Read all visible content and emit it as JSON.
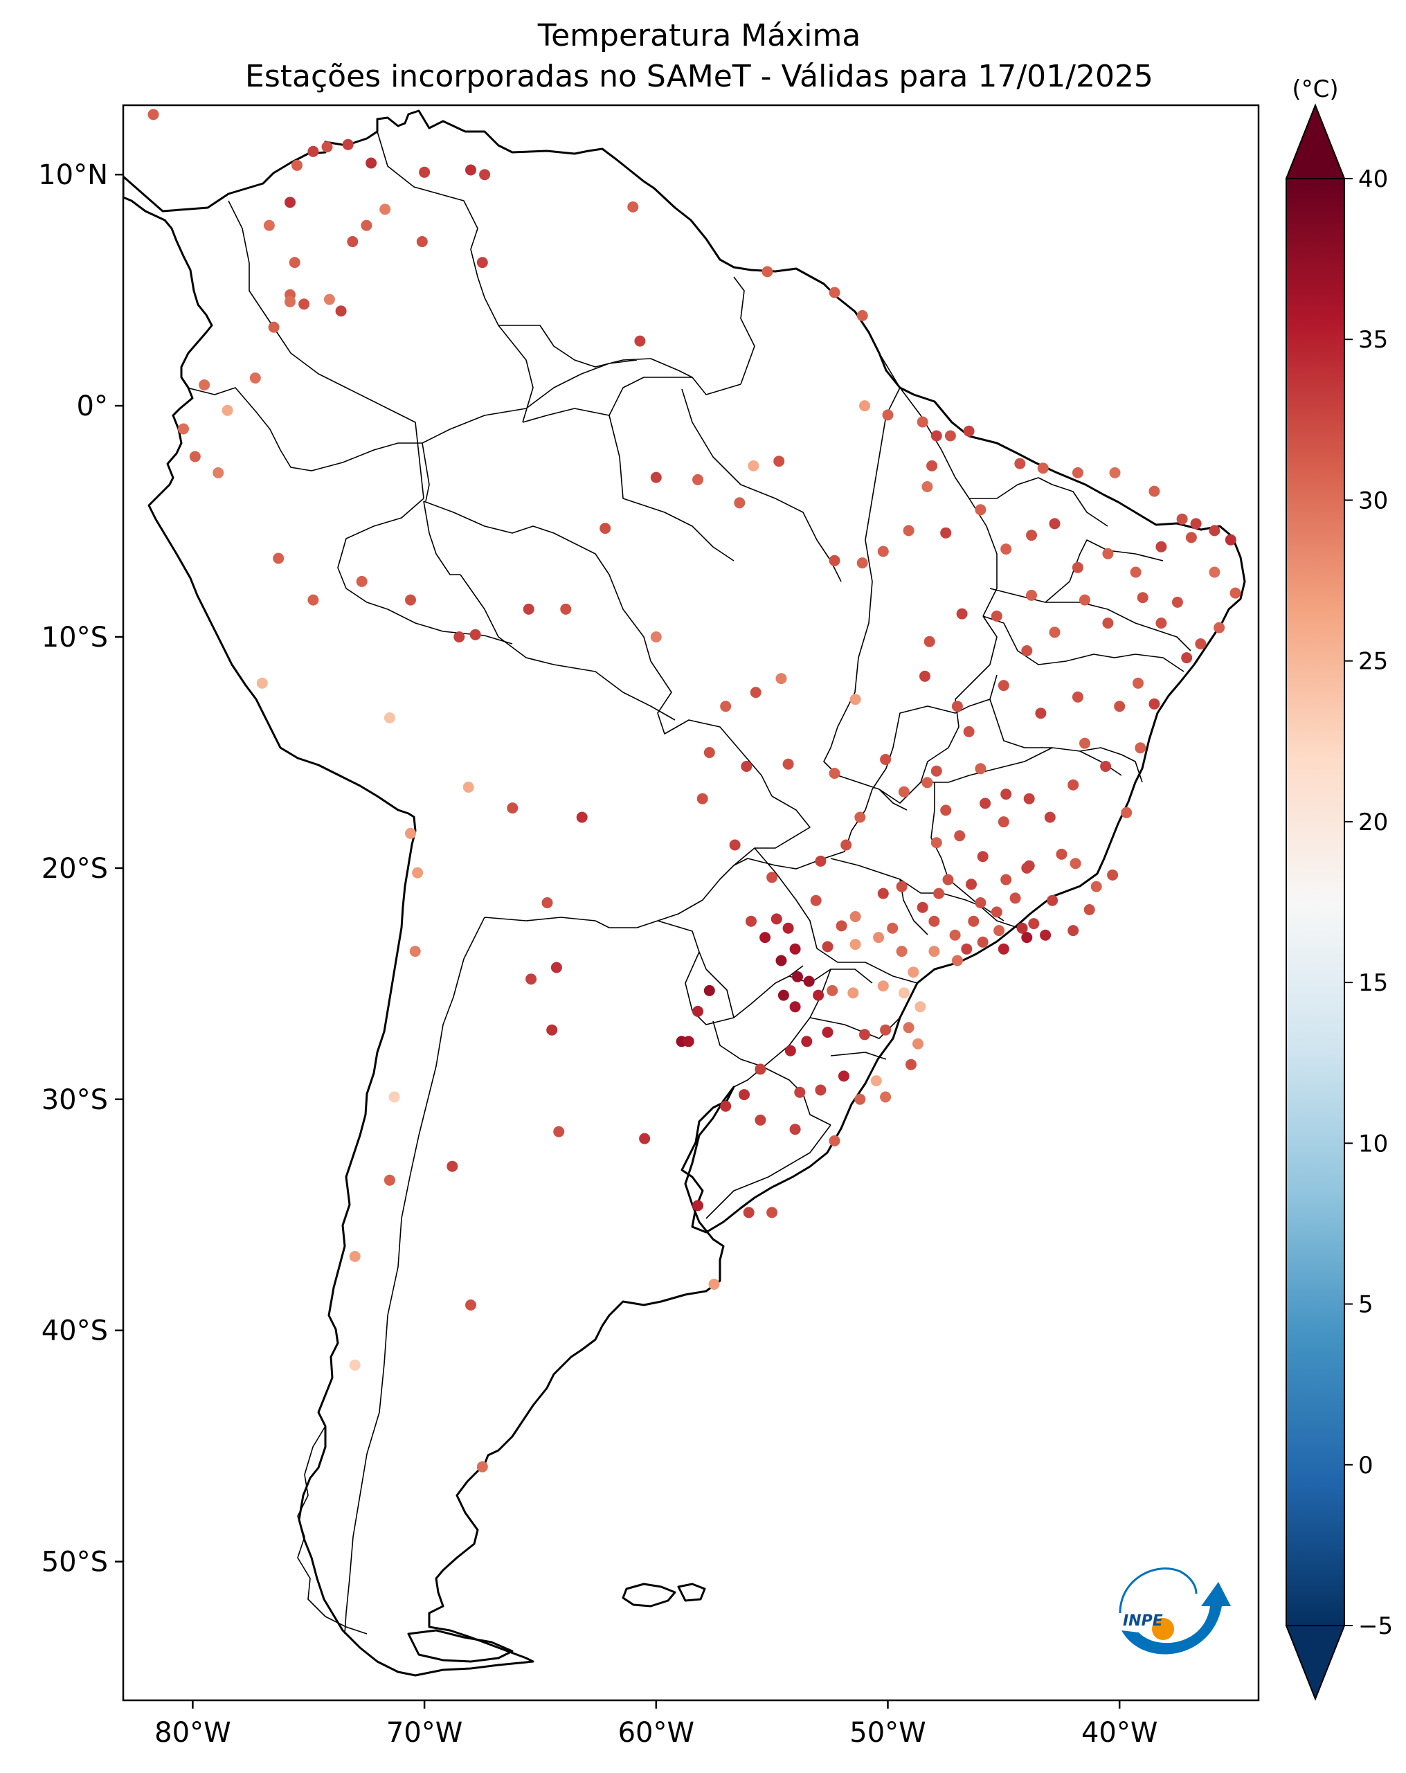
{
  "title": {
    "line1": "Temperatura Máxima",
    "line2": "Estações incorporadas no SAMeT - Válidas para 17/01/2025"
  },
  "map": {
    "projection": "plate-carree",
    "lon_range": [
      -83,
      -34
    ],
    "lat_range": [
      -56,
      13
    ],
    "lat_ticks": [
      {
        "value": 10,
        "label": "10°N"
      },
      {
        "value": 0,
        "label": "0°"
      },
      {
        "value": -10,
        "label": "10°S"
      },
      {
        "value": -20,
        "label": "20°S"
      },
      {
        "value": -30,
        "label": "30°S"
      },
      {
        "value": -40,
        "label": "40°S"
      },
      {
        "value": -50,
        "label": "50°S"
      }
    ],
    "lon_ticks": [
      {
        "value": -80,
        "label": "80°W"
      },
      {
        "value": -70,
        "label": "70°W"
      },
      {
        "value": -60,
        "label": "60°W"
      },
      {
        "value": -50,
        "label": "50°W"
      },
      {
        "value": -40,
        "label": "40°W"
      }
    ]
  },
  "colorbar": {
    "unit": "(°C)",
    "vmin": -5,
    "vmax": 40,
    "extend": "both",
    "colormap": "RdBu_r",
    "ticks": [
      {
        "value": 40,
        "label": "40"
      },
      {
        "value": 35,
        "label": "35"
      },
      {
        "value": 30,
        "label": "30"
      },
      {
        "value": 25,
        "label": "25"
      },
      {
        "value": 20,
        "label": "20"
      },
      {
        "value": 15,
        "label": "15"
      },
      {
        "value": 10,
        "label": "10"
      },
      {
        "value": 5,
        "label": "5"
      },
      {
        "value": 0,
        "label": "0"
      },
      {
        "value": -5,
        "label": "−5"
      }
    ],
    "stops": [
      "#053061",
      "#2166ac",
      "#4393c3",
      "#92c5de",
      "#d1e5f0",
      "#f7f7f7",
      "#fddbc7",
      "#f4a582",
      "#d6604d",
      "#b2182b",
      "#67001f"
    ]
  },
  "logo": {
    "text": "INPE",
    "blue": "#0072bc",
    "orange": "#f39200"
  },
  "chart_data": {
    "type": "scatter",
    "x_name": "longitude",
    "y_name": "latitude",
    "value_name": "max_temperature_c",
    "stations": [
      [
        -81.7,
        12.6,
        31
      ],
      [
        -74.8,
        11.0,
        33
      ],
      [
        -74.2,
        11.2,
        32
      ],
      [
        -73.3,
        11.3,
        33
      ],
      [
        -72.3,
        10.5,
        34
      ],
      [
        -70.0,
        10.1,
        33
      ],
      [
        -68.0,
        10.2,
        34
      ],
      [
        -67.4,
        10.0,
        33
      ],
      [
        -75.5,
        10.4,
        31
      ],
      [
        -75.8,
        8.8,
        34
      ],
      [
        -76.7,
        7.8,
        30
      ],
      [
        -73.1,
        7.1,
        32
      ],
      [
        -72.5,
        7.8,
        31
      ],
      [
        -71.7,
        8.5,
        29
      ],
      [
        -70.1,
        7.1,
        32
      ],
      [
        -67.5,
        6.2,
        33
      ],
      [
        -75.6,
        6.2,
        31
      ],
      [
        -75.8,
        4.8,
        31
      ],
      [
        -75.2,
        4.4,
        32
      ],
      [
        -74.1,
        4.6,
        29
      ],
      [
        -73.6,
        4.1,
        33
      ],
      [
        -75.8,
        4.5,
        30
      ],
      [
        -76.5,
        3.4,
        31
      ],
      [
        -77.3,
        1.2,
        30
      ],
      [
        -78.5,
        -0.2,
        26
      ],
      [
        -79.9,
        -2.2,
        31
      ],
      [
        -80.4,
        -1.0,
        30
      ],
      [
        -78.9,
        -2.9,
        29
      ],
      [
        -79.5,
        0.9,
        30
      ],
      [
        -60.7,
        2.8,
        33
      ],
      [
        -61.0,
        8.6,
        31
      ],
      [
        -52.3,
        4.9,
        31
      ],
      [
        -55.2,
        5.8,
        31
      ],
      [
        -51.1,
        3.9,
        31
      ],
      [
        -51.0,
        0.0,
        27
      ],
      [
        -50.0,
        -0.4,
        31
      ],
      [
        -48.5,
        -0.7,
        31
      ],
      [
        -47.9,
        -1.3,
        33
      ],
      [
        -47.3,
        -1.3,
        32
      ],
      [
        -46.5,
        -1.1,
        33
      ],
      [
        -48.1,
        -2.6,
        32
      ],
      [
        -48.3,
        -3.5,
        30
      ],
      [
        -44.3,
        -2.5,
        32
      ],
      [
        -43.3,
        -2.7,
        31
      ],
      [
        -41.8,
        -2.9,
        31
      ],
      [
        -40.2,
        -2.9,
        30
      ],
      [
        -38.5,
        -3.7,
        31
      ],
      [
        -37.3,
        -4.9,
        32
      ],
      [
        -36.7,
        -5.1,
        33
      ],
      [
        -35.2,
        -5.8,
        34
      ],
      [
        -35.9,
        -5.4,
        33
      ],
      [
        -36.9,
        -5.7,
        32
      ],
      [
        -38.2,
        -6.1,
        33
      ],
      [
        -39.3,
        -7.2,
        31
      ],
      [
        -40.5,
        -6.4,
        31
      ],
      [
        -41.8,
        -7.0,
        32
      ],
      [
        -42.8,
        -5.1,
        33
      ],
      [
        -43.8,
        -5.6,
        32
      ],
      [
        -44.9,
        -6.2,
        31
      ],
      [
        -46.0,
        -4.5,
        31
      ],
      [
        -47.5,
        -5.5,
        33
      ],
      [
        -49.1,
        -5.4,
        31
      ],
      [
        -50.2,
        -6.3,
        31
      ],
      [
        -51.1,
        -6.8,
        31
      ],
      [
        -52.3,
        -6.7,
        32
      ],
      [
        -54.7,
        -2.4,
        32
      ],
      [
        -55.8,
        -2.6,
        26
      ],
      [
        -56.4,
        -4.2,
        31
      ],
      [
        -58.2,
        -3.2,
        31
      ],
      [
        -60.0,
        -3.1,
        33
      ],
      [
        -62.2,
        -5.3,
        32
      ],
      [
        -63.9,
        -8.8,
        32
      ],
      [
        -65.5,
        -8.8,
        33
      ],
      [
        -67.8,
        -9.9,
        33
      ],
      [
        -68.5,
        -10.0,
        33
      ],
      [
        -70.6,
        -8.4,
        32
      ],
      [
        -72.7,
        -7.6,
        31
      ],
      [
        -74.8,
        -8.4,
        31
      ],
      [
        -76.3,
        -6.6,
        31
      ],
      [
        -77.0,
        -12.0,
        25
      ],
      [
        -71.5,
        -13.5,
        24
      ],
      [
        -68.1,
        -16.5,
        26
      ],
      [
        -66.2,
        -17.4,
        32
      ],
      [
        -63.2,
        -17.8,
        34
      ],
      [
        -64.7,
        -21.5,
        32
      ],
      [
        -65.4,
        -24.8,
        33
      ],
      [
        -64.3,
        -24.3,
        34
      ],
      [
        -64.5,
        -27.0,
        34
      ],
      [
        -58.9,
        -27.5,
        37
      ],
      [
        -57.7,
        -25.3,
        37
      ],
      [
        -58.6,
        -27.5,
        36
      ],
      [
        -58.2,
        -26.2,
        35
      ],
      [
        -60.5,
        -31.7,
        34
      ],
      [
        -64.2,
        -31.4,
        32
      ],
      [
        -68.8,
        -32.9,
        33
      ],
      [
        -71.5,
        -33.5,
        31
      ],
      [
        -70.6,
        -18.5,
        27
      ],
      [
        -70.3,
        -20.2,
        27
      ],
      [
        -70.4,
        -23.6,
        29
      ],
      [
        -71.3,
        -29.9,
        23
      ],
      [
        -73.0,
        -36.8,
        27
      ],
      [
        -73.0,
        -41.5,
        23
      ],
      [
        -67.5,
        -45.9,
        30
      ],
      [
        -68.0,
        -38.9,
        32
      ],
      [
        -58.2,
        -34.6,
        35
      ],
      [
        -57.5,
        -38.0,
        27
      ],
      [
        -56.0,
        -34.9,
        33
      ],
      [
        -55.0,
        -34.9,
        32
      ],
      [
        -60.0,
        -10.0,
        29
      ],
      [
        -57.0,
        -13.0,
        31
      ],
      [
        -55.7,
        -12.4,
        32
      ],
      [
        -54.6,
        -11.8,
        29
      ],
      [
        -51.4,
        -12.7,
        27
      ],
      [
        -52.3,
        -15.9,
        31
      ],
      [
        -54.3,
        -15.5,
        32
      ],
      [
        -56.1,
        -15.6,
        33
      ],
      [
        -57.7,
        -15.0,
        32
      ],
      [
        -58.0,
        -17.0,
        32
      ],
      [
        -56.6,
        -19.0,
        33
      ],
      [
        -55.0,
        -20.4,
        32
      ],
      [
        -55.9,
        -22.3,
        33
      ],
      [
        -54.8,
        -22.2,
        34
      ],
      [
        -54.3,
        -22.6,
        35
      ],
      [
        -55.3,
        -23.0,
        36
      ],
      [
        -54.0,
        -23.5,
        36
      ],
      [
        -54.6,
        -24.0,
        37
      ],
      [
        -54.5,
        -25.5,
        37
      ],
      [
        -53.9,
        -24.7,
        37
      ],
      [
        -53.4,
        -24.9,
        37
      ],
      [
        -54.0,
        -26.0,
        36
      ],
      [
        -53.0,
        -25.5,
        35
      ],
      [
        -52.4,
        -25.3,
        31
      ],
      [
        -51.5,
        -25.4,
        27
      ],
      [
        -50.2,
        -25.1,
        27
      ],
      [
        -49.3,
        -25.4,
        24
      ],
      [
        -48.6,
        -26.0,
        25
      ],
      [
        -49.1,
        -26.9,
        30
      ],
      [
        -50.1,
        -27.0,
        32
      ],
      [
        -51.0,
        -27.2,
        33
      ],
      [
        -52.6,
        -27.1,
        35
      ],
      [
        -53.5,
        -27.5,
        35
      ],
      [
        -54.2,
        -27.9,
        35
      ],
      [
        -55.5,
        -28.7,
        33
      ],
      [
        -56.2,
        -29.8,
        34
      ],
      [
        -57.0,
        -30.3,
        34
      ],
      [
        -55.5,
        -30.9,
        33
      ],
      [
        -54.0,
        -31.3,
        33
      ],
      [
        -52.3,
        -31.8,
        31
      ],
      [
        -51.2,
        -30.0,
        31
      ],
      [
        -50.1,
        -29.9,
        30
      ],
      [
        -50.5,
        -29.2,
        26
      ],
      [
        -51.9,
        -29.0,
        35
      ],
      [
        -52.9,
        -29.6,
        33
      ],
      [
        -53.8,
        -29.7,
        33
      ],
      [
        -49.0,
        -28.5,
        32
      ],
      [
        -48.7,
        -27.6,
        28
      ],
      [
        -50.2,
        -21.1,
        33
      ],
      [
        -49.4,
        -20.8,
        32
      ],
      [
        -48.5,
        -21.7,
        33
      ],
      [
        -47.8,
        -21.1,
        32
      ],
      [
        -46.6,
        -23.5,
        33
      ],
      [
        -45.9,
        -23.2,
        32
      ],
      [
        -45.2,
        -22.7,
        31
      ],
      [
        -44.2,
        -22.6,
        34
      ],
      [
        -43.2,
        -22.9,
        35
      ],
      [
        -42.0,
        -22.7,
        33
      ],
      [
        -41.3,
        -21.8,
        32
      ],
      [
        -40.3,
        -20.3,
        32
      ],
      [
        -41.9,
        -19.8,
        31
      ],
      [
        -43.9,
        -19.9,
        33
      ],
      [
        -44.9,
        -20.5,
        32
      ],
      [
        -45.9,
        -19.5,
        33
      ],
      [
        -46.9,
        -18.6,
        32
      ],
      [
        -47.9,
        -18.9,
        31
      ],
      [
        -48.3,
        -16.3,
        31
      ],
      [
        -49.3,
        -16.7,
        31
      ],
      [
        -47.9,
        -15.8,
        32
      ],
      [
        -50.1,
        -15.3,
        32
      ],
      [
        -51.2,
        -17.8,
        31
      ],
      [
        -51.8,
        -19.0,
        32
      ],
      [
        -52.9,
        -19.7,
        33
      ],
      [
        -53.1,
        -21.4,
        32
      ],
      [
        -51.4,
        -22.1,
        29
      ],
      [
        -52.0,
        -22.5,
        32
      ],
      [
        -52.6,
        -23.4,
        33
      ],
      [
        -51.4,
        -23.3,
        27
      ],
      [
        -50.4,
        -23.0,
        28
      ],
      [
        -49.4,
        -23.6,
        30
      ],
      [
        -48.0,
        -23.6,
        28
      ],
      [
        -48.9,
        -24.5,
        27
      ],
      [
        -47.0,
        -24.0,
        30
      ],
      [
        -45.0,
        -23.5,
        35
      ],
      [
        -44.0,
        -23.0,
        36
      ],
      [
        -43.7,
        -22.4,
        33
      ],
      [
        -44.5,
        -21.3,
        32
      ],
      [
        -45.3,
        -21.9,
        32
      ],
      [
        -46.3,
        -22.3,
        32
      ],
      [
        -47.1,
        -22.9,
        31
      ],
      [
        -48.0,
        -22.3,
        32
      ],
      [
        -49.8,
        -22.6,
        31
      ],
      [
        -46.4,
        -20.7,
        33
      ],
      [
        -45.0,
        -18.0,
        32
      ],
      [
        -43.0,
        -17.8,
        33
      ],
      [
        -42.0,
        -16.4,
        32
      ],
      [
        -40.6,
        -15.6,
        33
      ],
      [
        -41.5,
        -14.6,
        31
      ],
      [
        -39.1,
        -14.8,
        31
      ],
      [
        -39.7,
        -17.6,
        31
      ],
      [
        -38.5,
        -12.9,
        33
      ],
      [
        -39.2,
        -12.0,
        31
      ],
      [
        -40.0,
        -13.0,
        32
      ],
      [
        -41.8,
        -12.6,
        32
      ],
      [
        -43.4,
        -13.3,
        33
      ],
      [
        -45.0,
        -12.1,
        32
      ],
      [
        -44.0,
        -10.6,
        32
      ],
      [
        -42.8,
        -9.8,
        31
      ],
      [
        -40.5,
        -9.4,
        32
      ],
      [
        -38.2,
        -9.4,
        32
      ],
      [
        -37.1,
        -10.9,
        33
      ],
      [
        -36.5,
        -10.3,
        32
      ],
      [
        -35.7,
        -9.6,
        31
      ],
      [
        -35.0,
        -8.1,
        31
      ],
      [
        -35.9,
        -7.2,
        30
      ],
      [
        -37.5,
        -8.5,
        32
      ],
      [
        -39.0,
        -8.3,
        32
      ],
      [
        -41.5,
        -8.4,
        31
      ],
      [
        -43.8,
        -8.2,
        31
      ],
      [
        -45.3,
        -9.1,
        32
      ],
      [
        -46.8,
        -9.0,
        33
      ],
      [
        -48.2,
        -10.2,
        32
      ],
      [
        -48.4,
        -11.7,
        33
      ],
      [
        -47.0,
        -13.0,
        32
      ],
      [
        -46.5,
        -14.1,
        32
      ],
      [
        -46.0,
        -15.7,
        31
      ],
      [
        -44.9,
        -16.8,
        33
      ],
      [
        -43.9,
        -17.0,
        33
      ],
      [
        -42.5,
        -19.4,
        32
      ],
      [
        -41.0,
        -20.8,
        31
      ],
      [
        -42.9,
        -21.4,
        33
      ],
      [
        -47.4,
        -20.5,
        32
      ],
      [
        -46.0,
        -21.5,
        32
      ],
      [
        -44.0,
        -20.0,
        33
      ],
      [
        -45.8,
        -17.2,
        33
      ],
      [
        -47.5,
        -17.5,
        32
      ]
    ]
  }
}
